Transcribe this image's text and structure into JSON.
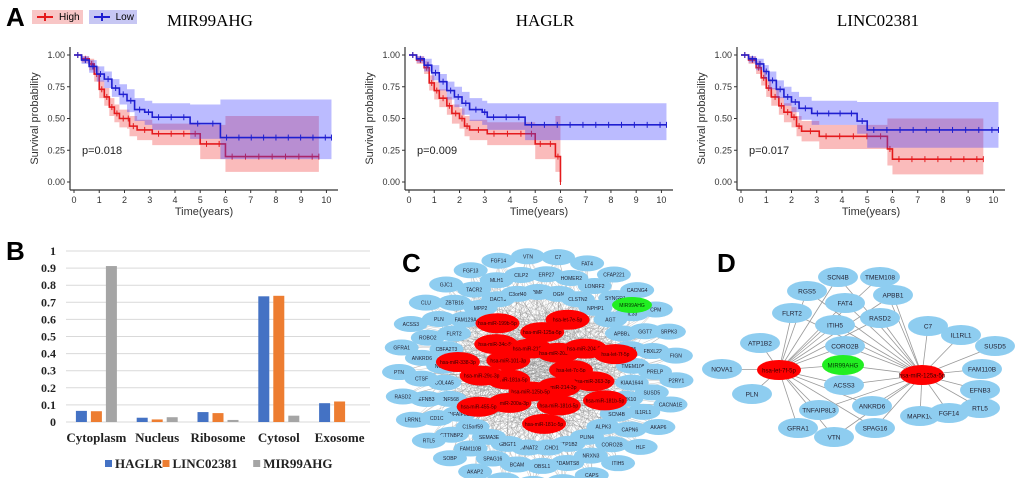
{
  "panels": {
    "A": {
      "letter": "A"
    },
    "B": {
      "letter": "B"
    },
    "C": {
      "letter": "C"
    },
    "D": {
      "letter": "D"
    }
  },
  "km_legend": {
    "items": [
      {
        "label": "High",
        "color": "#e41a1c"
      },
      {
        "label": "Low",
        "color": "#1f1fd0"
      }
    ]
  },
  "chart_data": [
    {
      "type": "line",
      "subtype": "kaplan-meier",
      "title": "MIR99AHG",
      "xlabel": "Time(years)",
      "ylabel": "Survival probability",
      "xlim": [
        0,
        10
      ],
      "ylim": [
        0,
        1
      ],
      "xticks": [
        "0",
        "1",
        "2",
        "3",
        "4",
        "5",
        "6",
        "7",
        "8",
        "9",
        "10"
      ],
      "yticks": [
        "0.00",
        "0.25",
        "0.50",
        "0.75",
        "1.00"
      ],
      "annotation": "p=0.018",
      "series": [
        {
          "name": "High",
          "color": "#e41a1c",
          "x": [
            0,
            0.3,
            0.6,
            0.8,
            1.0,
            1.2,
            1.4,
            1.6,
            1.8,
            2.1,
            2.2,
            2.5,
            3.1,
            4.6,
            5.0,
            6.0,
            9.7
          ],
          "y": [
            1.0,
            0.97,
            0.93,
            0.85,
            0.73,
            0.67,
            0.59,
            0.54,
            0.5,
            0.5,
            0.44,
            0.41,
            0.38,
            0.38,
            0.3,
            0.2,
            0.2
          ],
          "lower": [
            1.0,
            0.94,
            0.88,
            0.79,
            0.66,
            0.6,
            0.52,
            0.47,
            0.43,
            0.42,
            0.36,
            0.33,
            0.29,
            0.29,
            0.18,
            0.08,
            0.08
          ],
          "upper": [
            1.0,
            0.99,
            0.97,
            0.91,
            0.8,
            0.74,
            0.66,
            0.61,
            0.57,
            0.57,
            0.52,
            0.49,
            0.46,
            0.46,
            0.45,
            0.52,
            0.52
          ]
        },
        {
          "name": "Low",
          "color": "#1f1fd0",
          "x": [
            0,
            0.3,
            0.6,
            0.9,
            1.2,
            1.5,
            1.8,
            2.1,
            2.4,
            2.8,
            3.1,
            4.6,
            5.8,
            10.2
          ],
          "y": [
            1.0,
            0.96,
            0.91,
            0.85,
            0.81,
            0.74,
            0.69,
            0.64,
            0.57,
            0.55,
            0.51,
            0.46,
            0.35,
            0.35
          ],
          "lower": [
            1.0,
            0.93,
            0.86,
            0.79,
            0.74,
            0.67,
            0.61,
            0.55,
            0.48,
            0.45,
            0.41,
            0.34,
            0.18,
            0.18
          ],
          "upper": [
            1.0,
            0.99,
            0.96,
            0.91,
            0.87,
            0.81,
            0.77,
            0.73,
            0.66,
            0.64,
            0.62,
            0.61,
            0.65,
            0.65
          ]
        }
      ]
    },
    {
      "type": "line",
      "subtype": "kaplan-meier",
      "title": "HAGLR",
      "xlabel": "Time(years)",
      "ylabel": "Survival probability",
      "xlim": [
        0,
        10
      ],
      "ylim": [
        0,
        1
      ],
      "xticks": [
        "0",
        "1",
        "2",
        "3",
        "4",
        "5",
        "6",
        "7",
        "8",
        "9",
        "10"
      ],
      "yticks": [
        "0.00",
        "0.25",
        "0.50",
        "0.75",
        "1.00"
      ],
      "annotation": "p=0.009",
      "series": [
        {
          "name": "High",
          "color": "#e41a1c",
          "x": [
            0,
            0.3,
            0.6,
            0.8,
            1.0,
            1.2,
            1.5,
            1.7,
            2.0,
            2.2,
            2.4,
            3.1,
            4.7,
            5.0,
            5.8,
            6.0
          ],
          "y": [
            1.0,
            0.96,
            0.9,
            0.78,
            0.72,
            0.66,
            0.6,
            0.54,
            0.5,
            0.44,
            0.41,
            0.38,
            0.38,
            0.3,
            0.2,
            0.0
          ],
          "lower": [
            1.0,
            0.93,
            0.85,
            0.72,
            0.65,
            0.59,
            0.53,
            0.46,
            0.42,
            0.36,
            0.33,
            0.29,
            0.29,
            0.18,
            0.08,
            0.0
          ],
          "upper": [
            1.0,
            0.99,
            0.95,
            0.84,
            0.79,
            0.73,
            0.67,
            0.61,
            0.58,
            0.52,
            0.49,
            0.47,
            0.47,
            0.45,
            0.52,
            0.52
          ]
        },
        {
          "name": "Low",
          "color": "#1f1fd0",
          "x": [
            0,
            0.3,
            0.6,
            0.9,
            1.2,
            1.5,
            1.8,
            2.1,
            2.4,
            2.9,
            3.1,
            4.6,
            10.2
          ],
          "y": [
            1.0,
            0.97,
            0.92,
            0.86,
            0.79,
            0.72,
            0.67,
            0.62,
            0.57,
            0.55,
            0.51,
            0.45,
            0.45
          ],
          "lower": [
            1.0,
            0.94,
            0.87,
            0.8,
            0.72,
            0.65,
            0.59,
            0.53,
            0.48,
            0.45,
            0.41,
            0.33,
            0.33
          ],
          "upper": [
            1.0,
            0.99,
            0.97,
            0.92,
            0.85,
            0.79,
            0.75,
            0.71,
            0.66,
            0.64,
            0.62,
            0.62,
            0.62
          ]
        }
      ]
    },
    {
      "type": "line",
      "subtype": "kaplan-meier",
      "title": "LINC02381",
      "xlabel": "Time(years)",
      "ylabel": "Survival probability",
      "xlim": [
        0,
        10
      ],
      "ylim": [
        0,
        1
      ],
      "xticks": [
        "0",
        "1",
        "2",
        "3",
        "4",
        "5",
        "6",
        "7",
        "8",
        "9",
        "10"
      ],
      "yticks": [
        "0.00",
        "0.25",
        "0.50",
        "0.75",
        "1.00"
      ],
      "annotation": "p=0.017",
      "series": [
        {
          "name": "High",
          "color": "#e41a1c",
          "x": [
            0,
            0.3,
            0.6,
            0.8,
            1.0,
            1.2,
            1.5,
            1.7,
            2.0,
            2.2,
            2.4,
            3.1,
            5.8,
            6.0,
            9.6
          ],
          "y": [
            1.0,
            0.96,
            0.9,
            0.82,
            0.74,
            0.67,
            0.6,
            0.55,
            0.51,
            0.44,
            0.4,
            0.36,
            0.26,
            0.18,
            0.18
          ],
          "lower": [
            1.0,
            0.93,
            0.85,
            0.76,
            0.67,
            0.6,
            0.53,
            0.47,
            0.43,
            0.36,
            0.32,
            0.26,
            0.13,
            0.06,
            0.06
          ],
          "upper": [
            1.0,
            0.99,
            0.95,
            0.88,
            0.81,
            0.74,
            0.67,
            0.62,
            0.59,
            0.52,
            0.48,
            0.45,
            0.5,
            0.5,
            0.5
          ]
        },
        {
          "name": "Low",
          "color": "#1f1fd0",
          "x": [
            0,
            0.3,
            0.6,
            0.9,
            1.1,
            1.4,
            1.7,
            2.0,
            2.3,
            2.8,
            4.6,
            5.0,
            10.2
          ],
          "y": [
            1.0,
            0.97,
            0.93,
            0.87,
            0.8,
            0.73,
            0.67,
            0.63,
            0.58,
            0.54,
            0.48,
            0.41,
            0.41
          ],
          "lower": [
            1.0,
            0.94,
            0.88,
            0.81,
            0.73,
            0.66,
            0.6,
            0.55,
            0.49,
            0.45,
            0.38,
            0.27,
            0.27
          ],
          "upper": [
            1.0,
            0.99,
            0.97,
            0.92,
            0.87,
            0.8,
            0.75,
            0.71,
            0.67,
            0.64,
            0.63,
            0.63,
            0.63
          ]
        }
      ]
    },
    {
      "type": "bar",
      "title": "",
      "xlabel": "",
      "ylabel": "",
      "ylim": [
        0,
        1
      ],
      "yticks": [
        "0",
        "0.1",
        "0.2",
        "0.3",
        "0.4",
        "0.5",
        "0.6",
        "0.7",
        "0.8",
        "0.9",
        "1"
      ],
      "grid": true,
      "legend_position": "bottom",
      "categories": [
        "Cytoplasm",
        "Nucleus",
        "Ribosome",
        "Cytosol",
        "Exosome"
      ],
      "series": [
        {
          "name": "HAGLR",
          "color": "#4472c4",
          "values": [
            0.065,
            0.025,
            0.058,
            0.735,
            0.11
          ]
        },
        {
          "name": "LINC02381",
          "color": "#ed7d31",
          "values": [
            0.063,
            0.015,
            0.052,
            0.738,
            0.12
          ]
        },
        {
          "name": "MIR99AHG",
          "color": "#a5a5a5",
          "values": [
            0.912,
            0.028,
            0.012,
            0.037,
            0.0
          ]
        }
      ]
    }
  ],
  "network_C": {
    "colors": {
      "gene": "#8ecdf0",
      "mirna": "#ff0000",
      "lncrna": "#22ee22",
      "edge": "#888888"
    },
    "lncrna": [
      "MIR99AHG"
    ],
    "mirnas": [
      "hsa-let-7c-5p",
      "hsa-miR-363-3p",
      "hsa-miR-181b-5p",
      "hsa-miR-214-3p",
      "hsa-miR-181d-5p",
      "hsa-miR-181c-5p",
      "hsa-miR-125b-5p",
      "hsa-miR-200a-3p",
      "hsa-miR-455-5p",
      "hsa-miR-181a-5p",
      "hsa-miR-29c-3p",
      "hsa-miR-338-3p",
      "hsa-miR-101-3p",
      "hsa-miR-34c-5p",
      "hsa-miR-199b-5p",
      "hsa-miR-218-5p",
      "hsa-miR-125a-5p",
      "hsa-let-7e-5p",
      "hsa-miR-203a-3p",
      "hsa-miR-204-5p",
      "hsa-let-7f-5p"
    ],
    "genes": [
      "BMF",
      "ERP27",
      "C7",
      "OGN",
      "HOMER2",
      "FAT4",
      "CLSTN2",
      "LONRF2",
      "CFAP221",
      "NPHP1",
      "SYNGR1",
      "CACNG4",
      "AGT",
      "IL33",
      "CPM",
      "APBB1",
      "GGT7",
      "SRPK3",
      "RGS5",
      "FBXL22",
      "FIGN",
      "TMEM108",
      "PRELP",
      "P2RY1",
      "KIAA1644",
      "SUSD5",
      "CACNA1E",
      "MAPK10",
      "IL1RL1",
      "AKAP6",
      "SCN4B",
      "CAPN6",
      "HLF",
      "ALPK3",
      "CORO2B",
      "ITIH5",
      "PLIN4",
      "NRXN3",
      "CAPS",
      "ATP1B2",
      "ADAMTS8",
      "PHYHD1",
      "CACHD1",
      "OBSL1",
      "ZNF793",
      "NMNAT2",
      "BCAM",
      "PRICKLE2",
      "GBGT1",
      "SPAG16",
      "AKAP2",
      "SEMA3E",
      "FAM110B",
      "SOBP",
      "C15orf59",
      "CTTNBP2",
      "RTL5",
      "TNFAIP8L3",
      "CD1C",
      "LRRN1",
      "ZNF568",
      "EFNB3",
      "RASD2",
      "COL4A5",
      "CTSF",
      "PTN",
      "NOVA1",
      "ANKRD6",
      "GFRA1",
      "CBFA2T3",
      "ROBO2",
      "ACSS3",
      "FLRT2",
      "PLN",
      "CLU",
      "FAM129A",
      "ZBTB16",
      "GJC1",
      "MPP2",
      "TACR2",
      "FGF13",
      "DACT3",
      "MLH1",
      "FGF14",
      "C3orf40",
      "CILP2",
      "VTN"
    ]
  },
  "network_D": {
    "lncrna": "MIR99AHG",
    "mirnas": [
      "hsa-let-7f-5p",
      "hsa-miR-125a-5p"
    ],
    "genes": [
      "SCN4B",
      "TMEM108",
      "RGS5",
      "APBB1",
      "FAT4",
      "FLRT2",
      "RASD2",
      "ITIH5",
      "C7",
      "IL1RL1",
      "ATP1B2",
      "CORO2B",
      "SUSD5",
      "NOVA1",
      "FAM110B",
      "ACSS3",
      "PLN",
      "EFNB3",
      "ANKRD6",
      "TNFAIP8L3",
      "RTL5",
      "MAPK10",
      "FGF14",
      "GFRA1",
      "SPAG16",
      "VTN"
    ]
  }
}
